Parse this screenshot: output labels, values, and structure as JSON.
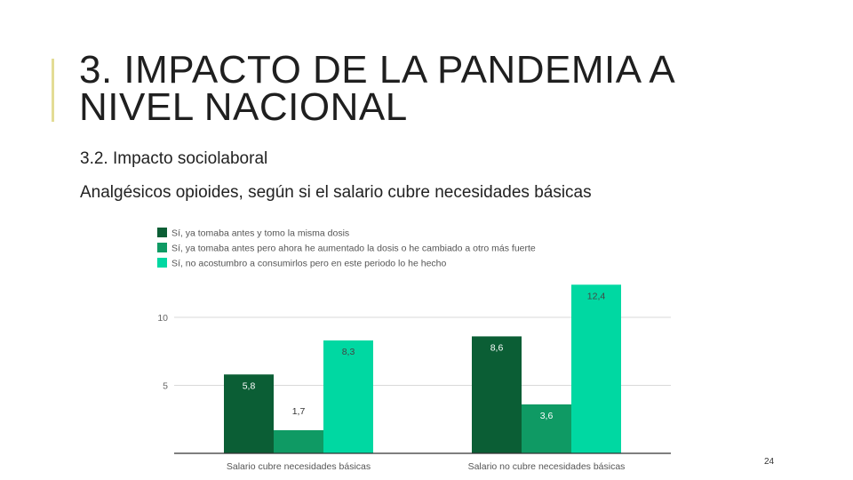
{
  "slide": {
    "title_line1": "3. IMPACTO DE LA PANDEMIA A",
    "title_line2": "NIVEL NACIONAL",
    "subtitle": "3.2. Impacto sociolaboral",
    "page_number": "24",
    "accent_color": "#e3dc95"
  },
  "chart_data": {
    "type": "bar",
    "title": "Analgésicos opioides, según si el salario cubre necesidades básicas",
    "categories": [
      "Salario cubre necesidades básicas",
      "Salario no cubre necesidades básicas"
    ],
    "series": [
      {
        "name": "Sí, ya tomaba antes y tomo la misma dosis",
        "values": [
          5.8,
          8.6
        ],
        "labels": [
          "5,8",
          "8,6"
        ],
        "color": "#0b5e35"
      },
      {
        "name": "Sí, ya tomaba antes pero ahora he aumentado la dosis o he cambiado a otro más fuerte",
        "values": [
          1.7,
          3.6
        ],
        "labels": [
          "1,7",
          "3,6"
        ],
        "color": "#0f9a64"
      },
      {
        "name": "Sí, no acostumbro a consumirlos pero en este periodo lo he hecho",
        "values": [
          8.3,
          12.4
        ],
        "labels": [
          "8,3",
          "12,4"
        ],
        "color": "#00d8a2"
      }
    ],
    "yticks": [
      5,
      10
    ],
    "ylim": [
      0,
      13
    ],
    "grid": true,
    "legend_position": "top-left"
  }
}
